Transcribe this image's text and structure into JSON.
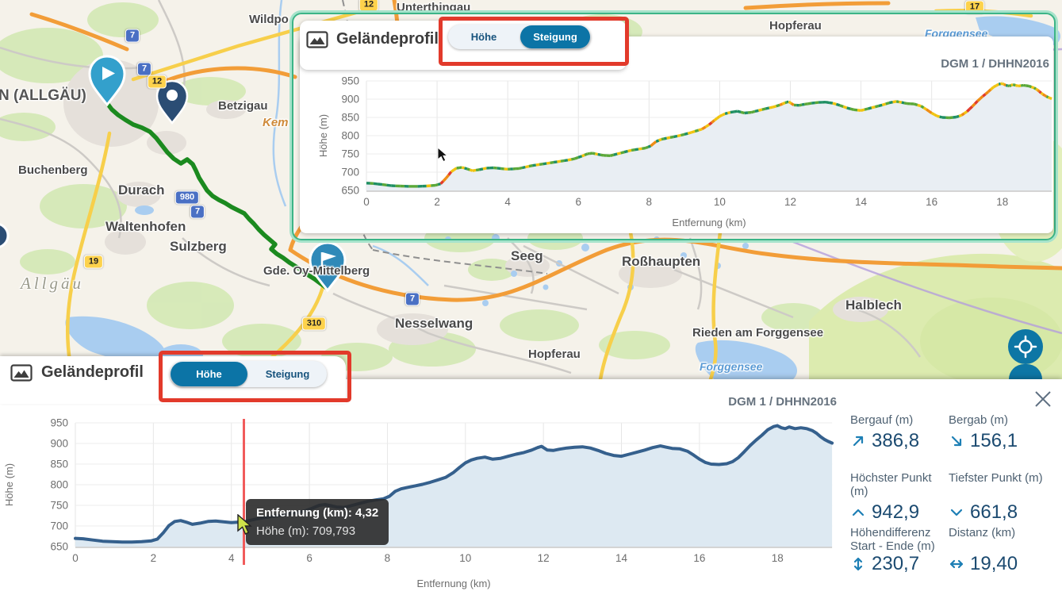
{
  "map": {
    "route_color": "#1b8a1f",
    "labels": [
      {
        "id": "kempten-allgaeu",
        "text": "N (ALLGÄU)"
      },
      {
        "id": "wildpoldsried",
        "text": "Wildpo"
      },
      {
        "id": "betzigau",
        "text": "Betzigau"
      },
      {
        "id": "kempter-wald",
        "text": "Kem"
      },
      {
        "id": "buchenberg",
        "text": "Buchenberg"
      },
      {
        "id": "durach",
        "text": "Durach"
      },
      {
        "id": "waltenhofen",
        "text": "Waltenhofen"
      },
      {
        "id": "sulzberg",
        "text": "Sulzberg"
      },
      {
        "id": "allgaeu",
        "text": "Allgäu"
      },
      {
        "id": "oy-mittelberg",
        "text": "Gde. Oy-Mittelberg"
      },
      {
        "id": "nesselwang",
        "text": "Nesselwang"
      },
      {
        "id": "seeg",
        "text": "Seeg"
      },
      {
        "id": "rosshaupten",
        "text": "Roßhaupten"
      },
      {
        "id": "hopferau-nord",
        "text": "Hopferau"
      },
      {
        "id": "hopferau",
        "text": "Hopferau"
      },
      {
        "id": "halblech",
        "text": "Halblech"
      },
      {
        "id": "rieden-am-forggensee",
        "text": "Rieden am Forggensee"
      },
      {
        "id": "forggensee",
        "text": "Forggensee"
      },
      {
        "id": "forggensee-nord",
        "text": "Forggensee"
      },
      {
        "id": "unterthingau",
        "text": "Unterthingau"
      }
    ],
    "shields": [
      {
        "text": "7",
        "type": "blue"
      },
      {
        "text": "7",
        "type": "blue"
      },
      {
        "text": "12",
        "type": "yellow"
      },
      {
        "text": "980",
        "type": "blue"
      },
      {
        "text": "7",
        "type": "blue"
      },
      {
        "text": "19",
        "type": "yellow"
      },
      {
        "text": "310",
        "type": "yellow"
      },
      {
        "text": "7",
        "type": "blue"
      },
      {
        "text": "17",
        "type": "yellow"
      },
      {
        "text": "12",
        "type": "yellow"
      }
    ]
  },
  "panels": {
    "top": {
      "title": "Geländeprofil",
      "toggle": {
        "options": [
          "Höhe",
          "Steigung"
        ],
        "active": "Steigung"
      },
      "source": "DGM 1 / DHHN2016"
    },
    "bottom": {
      "title": "Geländeprofil",
      "toggle": {
        "options": [
          "Höhe",
          "Steigung"
        ],
        "active": "Höhe"
      },
      "source": "DGM 1 / DHHN2016",
      "tooltip": {
        "line1": "Entfernung (km): 4,32",
        "line2": "Höhe (m): 709,793"
      },
      "stats": [
        {
          "label": "Bergauf (m)",
          "value": "386,8",
          "icon": "arrow-up-right-icon"
        },
        {
          "label": "Bergab (m)",
          "value": "156,1",
          "icon": "arrow-down-right-icon"
        },
        {
          "label": "Höchster Punkt (m)",
          "value": "942,9",
          "icon": "chevron-up-icon"
        },
        {
          "label": "Tiefster Punkt (m)",
          "value": "661,8",
          "icon": "chevron-down-icon"
        },
        {
          "label": "Höhendifferenz Start - Ende (m)",
          "value": "230,7",
          "icon": "arrow-up-down-icon"
        },
        {
          "label": "Distanz (km)",
          "value": "19,40",
          "icon": "arrow-left-right-icon"
        }
      ]
    }
  },
  "chart_data": {
    "type": "area",
    "title": "Geländeprofil",
    "x_label": "Entfernung (km)",
    "y_label": "Höhe (m)",
    "x_ticks": [
      0,
      2,
      4,
      6,
      8,
      10,
      12,
      14,
      16,
      18
    ],
    "y_ticks": [
      650,
      700,
      750,
      800,
      850,
      900,
      950
    ],
    "x_range": [
      0,
      19.4
    ],
    "y_range": [
      650,
      950
    ],
    "views": [
      "Höhe",
      "Steigung"
    ],
    "source": "DGM 1 / DHHN2016",
    "stats": {
      "bergauf_m": 386.8,
      "bergab_m": 156.1,
      "hoechster_punkt_m": 942.9,
      "tiefster_punkt_m": 661.8,
      "hoehendifferenz_start_ende_m": 230.7,
      "distanz_km": 19.4
    },
    "cursor": {
      "x_km": 4.32,
      "y_m": 709.793
    },
    "slope_colors": {
      "flat": "#1f8f63",
      "gentle": "#5aa838",
      "moderate": "#f1c40f",
      "steep": "#ef8b12",
      "very_steep": "#e23c2c"
    },
    "profile": [
      [
        0,
        670
      ],
      [
        0.2,
        669
      ],
      [
        0.45,
        666
      ],
      [
        0.7,
        663
      ],
      [
        0.95,
        662
      ],
      [
        1.2,
        661
      ],
      [
        1.45,
        661
      ],
      [
        1.7,
        662
      ],
      [
        1.95,
        664
      ],
      [
        2.1,
        668
      ],
      [
        2.25,
        683
      ],
      [
        2.4,
        701
      ],
      [
        2.55,
        711
      ],
      [
        2.7,
        713
      ],
      [
        2.85,
        709
      ],
      [
        3,
        704
      ],
      [
        3.2,
        707
      ],
      [
        3.4,
        711
      ],
      [
        3.6,
        712
      ],
      [
        3.8,
        710
      ],
      [
        4,
        708
      ],
      [
        4.15,
        709
      ],
      [
        4.32,
        710
      ],
      [
        4.5,
        714
      ],
      [
        4.7,
        718
      ],
      [
        4.9,
        721
      ],
      [
        5.1,
        724
      ],
      [
        5.3,
        727
      ],
      [
        5.5,
        730
      ],
      [
        5.7,
        733
      ],
      [
        5.9,
        737
      ],
      [
        6.1,
        744
      ],
      [
        6.25,
        750
      ],
      [
        6.4,
        752
      ],
      [
        6.55,
        749
      ],
      [
        6.7,
        746
      ],
      [
        6.9,
        745
      ],
      [
        7.1,
        750
      ],
      [
        7.3,
        755
      ],
      [
        7.5,
        760
      ],
      [
        7.7,
        763
      ],
      [
        7.9,
        766
      ],
      [
        8.05,
        772
      ],
      [
        8.2,
        784
      ],
      [
        8.35,
        790
      ],
      [
        8.5,
        793
      ],
      [
        8.7,
        797
      ],
      [
        8.9,
        801
      ],
      [
        9.1,
        806
      ],
      [
        9.3,
        812
      ],
      [
        9.5,
        818
      ],
      [
        9.7,
        830
      ],
      [
        9.85,
        842
      ],
      [
        10,
        853
      ],
      [
        10.15,
        860
      ],
      [
        10.3,
        864
      ],
      [
        10.5,
        867
      ],
      [
        10.7,
        862
      ],
      [
        10.9,
        864
      ],
      [
        11.1,
        869
      ],
      [
        11.3,
        874
      ],
      [
        11.5,
        878
      ],
      [
        11.7,
        884
      ],
      [
        11.85,
        890
      ],
      [
        11.95,
        893
      ],
      [
        12.1,
        884
      ],
      [
        12.25,
        883
      ],
      [
        12.4,
        886
      ],
      [
        12.6,
        889
      ],
      [
        12.8,
        891
      ],
      [
        13,
        892
      ],
      [
        13.2,
        889
      ],
      [
        13.4,
        883
      ],
      [
        13.6,
        876
      ],
      [
        13.8,
        871
      ],
      [
        14,
        869
      ],
      [
        14.2,
        874
      ],
      [
        14.4,
        879
      ],
      [
        14.6,
        884
      ],
      [
        14.8,
        890
      ],
      [
        15,
        894
      ],
      [
        15.15,
        891
      ],
      [
        15.3,
        888
      ],
      [
        15.5,
        887
      ],
      [
        15.7,
        881
      ],
      [
        15.85,
        872
      ],
      [
        16,
        862
      ],
      [
        16.15,
        854
      ],
      [
        16.3,
        850
      ],
      [
        16.5,
        849
      ],
      [
        16.7,
        851
      ],
      [
        16.85,
        856
      ],
      [
        17,
        866
      ],
      [
        17.15,
        880
      ],
      [
        17.3,
        895
      ],
      [
        17.45,
        908
      ],
      [
        17.6,
        920
      ],
      [
        17.75,
        933
      ],
      [
        17.9,
        941
      ],
      [
        18,
        943
      ],
      [
        18.1,
        938
      ],
      [
        18.2,
        936
      ],
      [
        18.3,
        940
      ],
      [
        18.45,
        936
      ],
      [
        18.6,
        938
      ],
      [
        18.75,
        936
      ],
      [
        18.9,
        931
      ],
      [
        19,
        925
      ],
      [
        19.1,
        917
      ],
      [
        19.2,
        910
      ],
      [
        19.3,
        905
      ],
      [
        19.4,
        901
      ]
    ]
  }
}
